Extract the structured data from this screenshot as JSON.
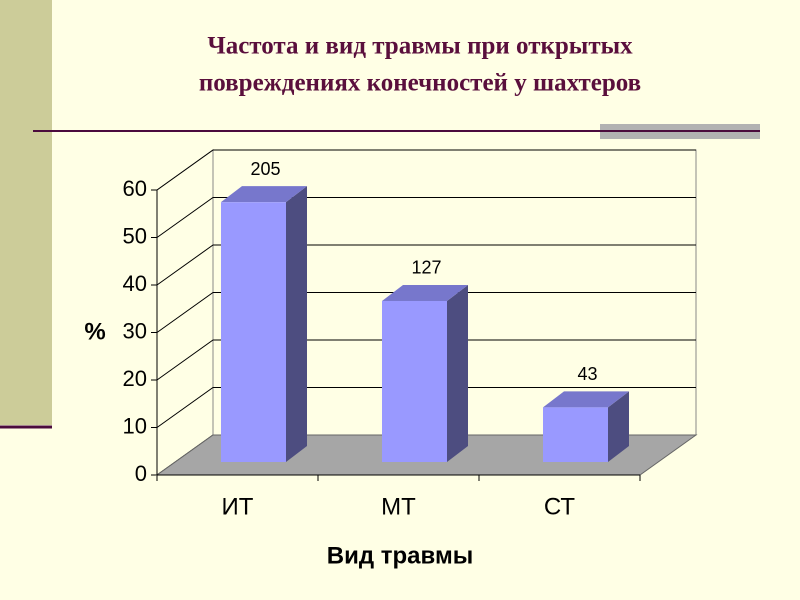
{
  "chart_data": {
    "type": "bar3d",
    "title": [
      "Частота и вид травмы при открытых",
      "повреждениях конечностей у шахтеров"
    ],
    "categories": [
      "ИТ",
      "МТ",
      "СТ"
    ],
    "values": [
      54.7,
      33.9,
      11.5
    ],
    "counts": [
      205,
      127,
      43
    ],
    "color": "#9999ff",
    "ylabel": "%",
    "xlabel": "Вид травмы",
    "ylim": [
      0,
      60
    ],
    "yticks": [
      0,
      10,
      20,
      30,
      40,
      50,
      60
    ],
    "grid": true
  }
}
